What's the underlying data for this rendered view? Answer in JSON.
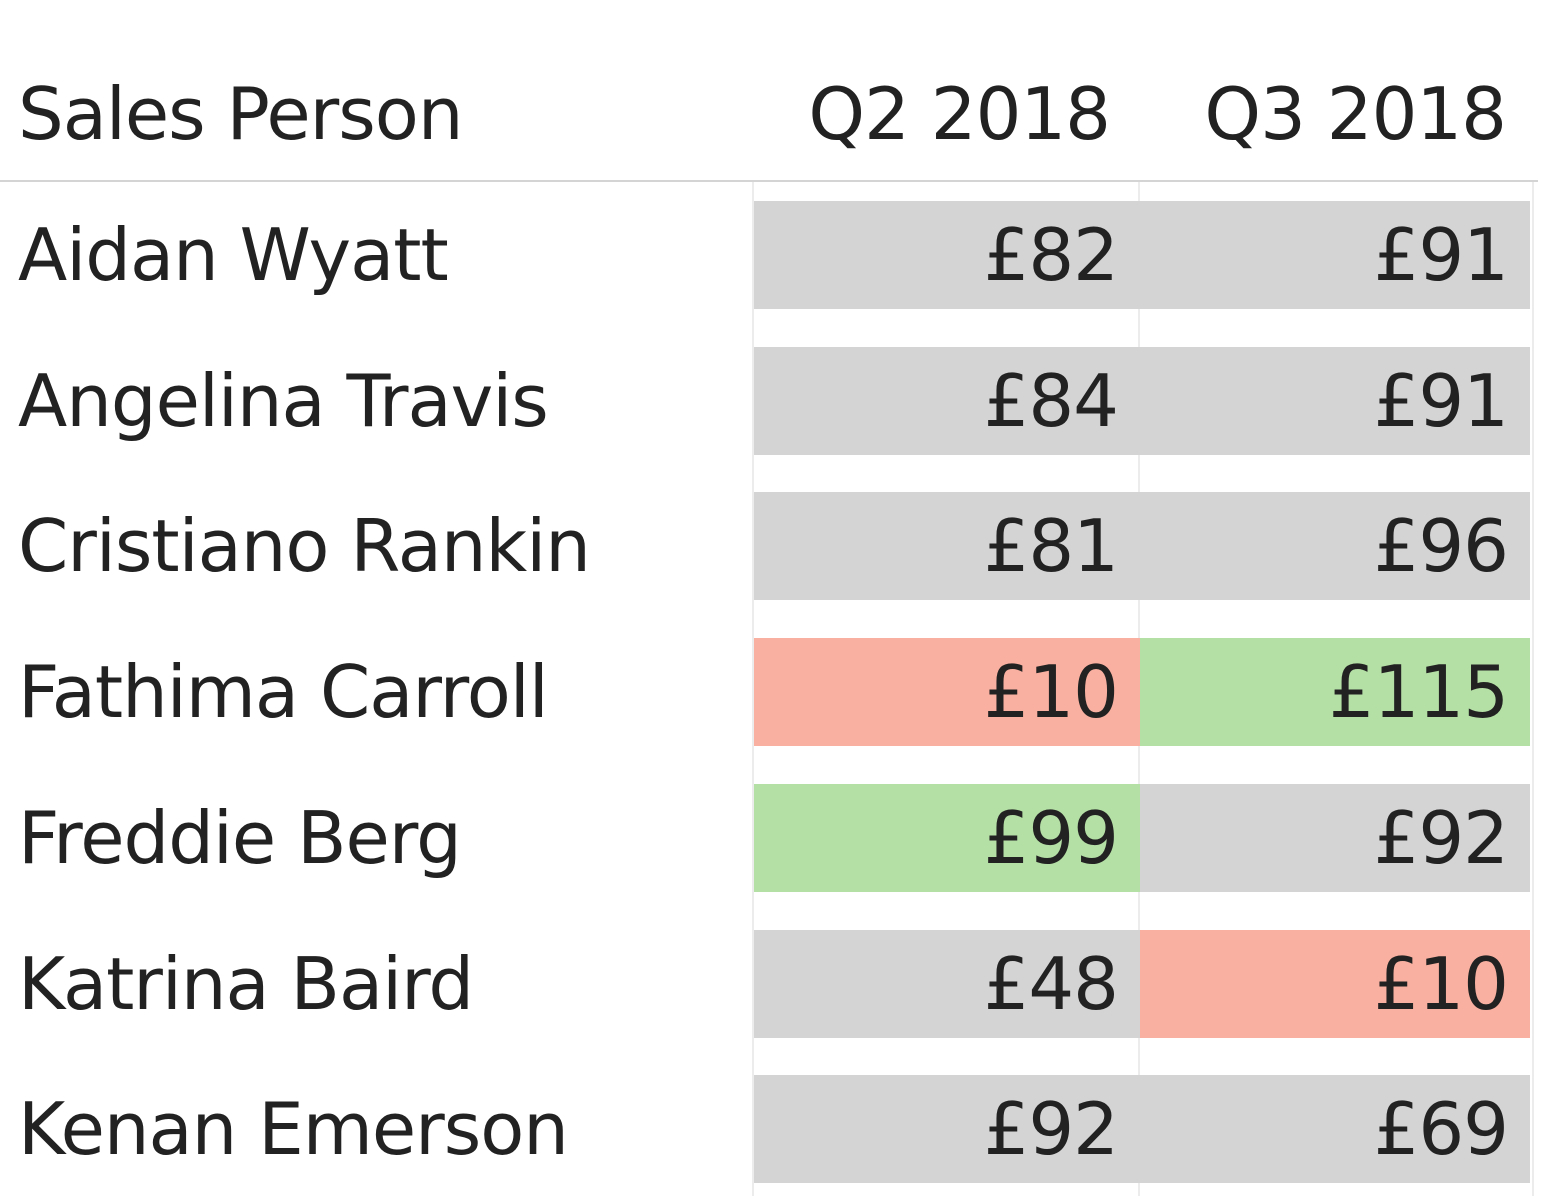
{
  "chart_data": {
    "type": "table",
    "columns": [
      "Sales Person",
      "Q2 2018",
      "Q3 2018"
    ],
    "rows": [
      {
        "name": "Aidan Wyatt",
        "q2": "£82",
        "q3": "£91",
        "q2_status": "neutral",
        "q3_status": "neutral"
      },
      {
        "name": "Angelina Travis",
        "q2": "£84",
        "q3": "£91",
        "q2_status": "neutral",
        "q3_status": "neutral"
      },
      {
        "name": "Cristiano Rankin",
        "q2": "£81",
        "q3": "£96",
        "q2_status": "neutral",
        "q3_status": "neutral"
      },
      {
        "name": "Fathima Carroll",
        "q2": "£10",
        "q3": "£115",
        "q2_status": "low",
        "q3_status": "high"
      },
      {
        "name": "Freddie Berg",
        "q2": "£99",
        "q3": "£92",
        "q2_status": "high",
        "q3_status": "neutral"
      },
      {
        "name": "Katrina Baird",
        "q2": "£48",
        "q3": "£10",
        "q2_status": "neutral",
        "q3_status": "low"
      },
      {
        "name": "Kenan Emerson",
        "q2": "£92",
        "q3": "£69",
        "q2_status": "neutral",
        "q3_status": "neutral"
      }
    ],
    "colors": {
      "neutral": "#d4d4d4",
      "low": "#fab0a0",
      "high": "#b4dfa5"
    }
  }
}
